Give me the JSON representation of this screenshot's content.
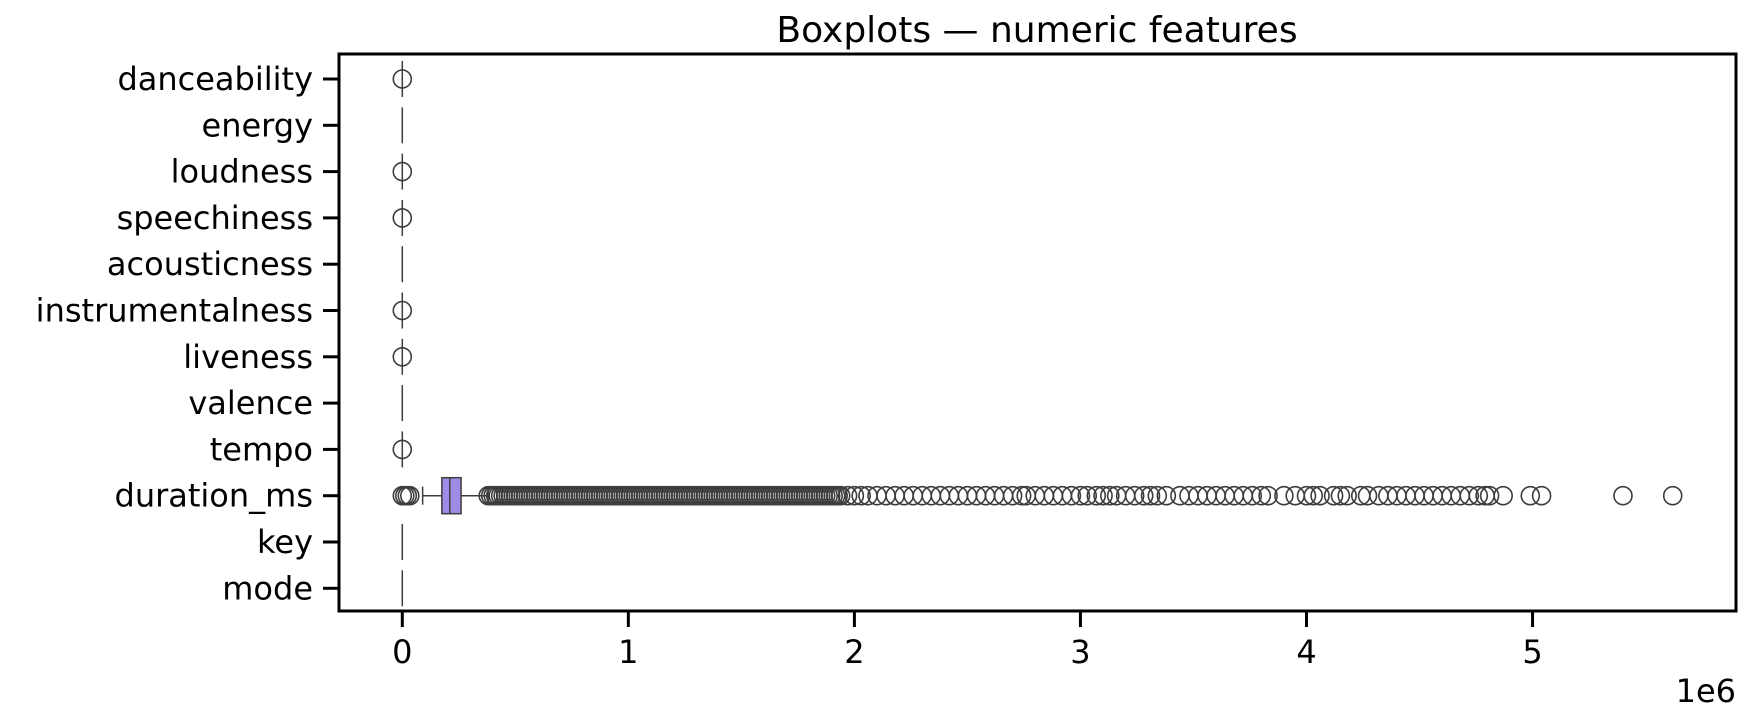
{
  "chart_data": {
    "type": "boxplot",
    "orientation": "horizontal",
    "title": "Boxplots — numeric features",
    "xlabel": "",
    "ylabel": "",
    "x_offset_label": "1e6",
    "x_multiplier": 1000000,
    "xlim": [
      -0.28,
      5.9
    ],
    "xticks": [
      0,
      1,
      2,
      3,
      4,
      5
    ],
    "xtick_labels": [
      "0",
      "1",
      "2",
      "3",
      "4",
      "5"
    ],
    "grid": false,
    "box_color": "#9e8ce6",
    "line_color": "#3d3d3d",
    "categories": [
      "danceability",
      "energy",
      "loudness",
      "speechiness",
      "acousticness",
      "instrumentalness",
      "liveness",
      "valence",
      "tempo",
      "duration_ms",
      "key",
      "mode"
    ],
    "series": [
      {
        "category": "danceability",
        "min": 0,
        "q1": 0,
        "median": 0,
        "q3": 0,
        "max": 0,
        "outliers": [
          0
        ]
      },
      {
        "category": "energy",
        "min": 0,
        "q1": 0,
        "median": 0,
        "q3": 0,
        "max": 0,
        "outliers": []
      },
      {
        "category": "loudness",
        "min": 0,
        "q1": 0,
        "median": 0,
        "q3": 0,
        "max": 0,
        "outliers": [
          0
        ]
      },
      {
        "category": "speechiness",
        "min": 0,
        "q1": 0,
        "median": 0,
        "q3": 0,
        "max": 0,
        "outliers": [
          0
        ]
      },
      {
        "category": "acousticness",
        "min": 0,
        "q1": 0,
        "median": 0,
        "q3": 0,
        "max": 0,
        "outliers": []
      },
      {
        "category": "instrumentalness",
        "min": 0,
        "q1": 0,
        "median": 0,
        "q3": 0,
        "max": 0,
        "outliers": [
          0
        ]
      },
      {
        "category": "liveness",
        "min": 0,
        "q1": 0,
        "median": 0,
        "q3": 0,
        "max": 0,
        "outliers": [
          0
        ]
      },
      {
        "category": "valence",
        "min": 0,
        "q1": 0,
        "median": 0,
        "q3": 0,
        "max": 0,
        "outliers": []
      },
      {
        "category": "tempo",
        "min": 0,
        "q1": 0,
        "median": 0,
        "q3": 0,
        "max": 0,
        "outliers": [
          0
        ]
      },
      {
        "category": "duration_ms",
        "min": 0.09,
        "q1": 0.175,
        "median": 0.21,
        "q3": 0.26,
        "max": 0.38,
        "outlier_ranges": [
          [
            0.0,
            0.04
          ],
          [
            0.38,
            1.95
          ]
        ],
        "outliers": [
          1.97,
          2.0,
          2.03,
          2.06,
          2.1,
          2.14,
          2.18,
          2.22,
          2.26,
          2.3,
          2.34,
          2.38,
          2.42,
          2.46,
          2.5,
          2.54,
          2.58,
          2.62,
          2.66,
          2.7,
          2.74,
          2.76,
          2.8,
          2.84,
          2.88,
          2.92,
          2.96,
          3.0,
          3.03,
          3.07,
          3.1,
          3.13,
          3.16,
          3.2,
          3.24,
          3.28,
          3.31,
          3.34,
          3.38,
          3.44,
          3.48,
          3.52,
          3.56,
          3.6,
          3.64,
          3.68,
          3.72,
          3.76,
          3.8,
          3.83,
          3.9,
          3.95,
          4.0,
          4.03,
          4.06,
          4.12,
          4.15,
          4.18,
          4.24,
          4.27,
          4.32,
          4.36,
          4.4,
          4.44,
          4.48,
          4.52,
          4.56,
          4.6,
          4.64,
          4.68,
          4.72,
          4.76,
          4.79,
          4.81,
          4.87,
          4.99,
          5.04,
          5.4,
          5.62
        ]
      },
      {
        "category": "key",
        "min": 0,
        "q1": 0,
        "median": 0,
        "q3": 0,
        "max": 0,
        "outliers": []
      },
      {
        "category": "mode",
        "min": 0,
        "q1": 0,
        "median": 0,
        "q3": 0,
        "max": 0,
        "outliers": []
      }
    ]
  }
}
